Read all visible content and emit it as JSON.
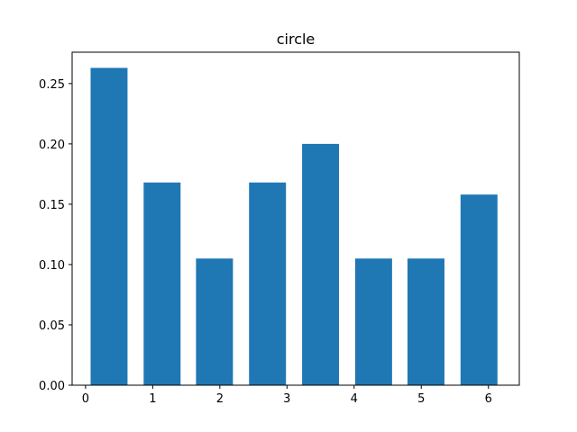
{
  "chart_data": {
    "type": "bar",
    "title": "circle",
    "xlabel": "",
    "ylabel": "",
    "x": [
      0.35,
      1.14,
      1.92,
      2.71,
      3.5,
      4.29,
      5.07,
      5.86
    ],
    "values": [
      0.263,
      0.168,
      0.105,
      0.168,
      0.2,
      0.105,
      0.105,
      0.158
    ],
    "bar_width": 0.55,
    "xlim": [
      -0.2,
      6.46
    ],
    "ylim": [
      0,
      0.276
    ],
    "xticks": [
      0,
      1,
      2,
      3,
      4,
      5,
      6
    ],
    "xtick_labels": [
      "0",
      "1",
      "2",
      "3",
      "4",
      "5",
      "6"
    ],
    "yticks": [
      0,
      0.05,
      0.1,
      0.15,
      0.2,
      0.25
    ],
    "ytick_labels": [
      "0.00",
      "0.05",
      "0.10",
      "0.15",
      "0.20",
      "0.25"
    ],
    "grid": false,
    "legend": "none",
    "bar_color": "#1f77b4"
  }
}
